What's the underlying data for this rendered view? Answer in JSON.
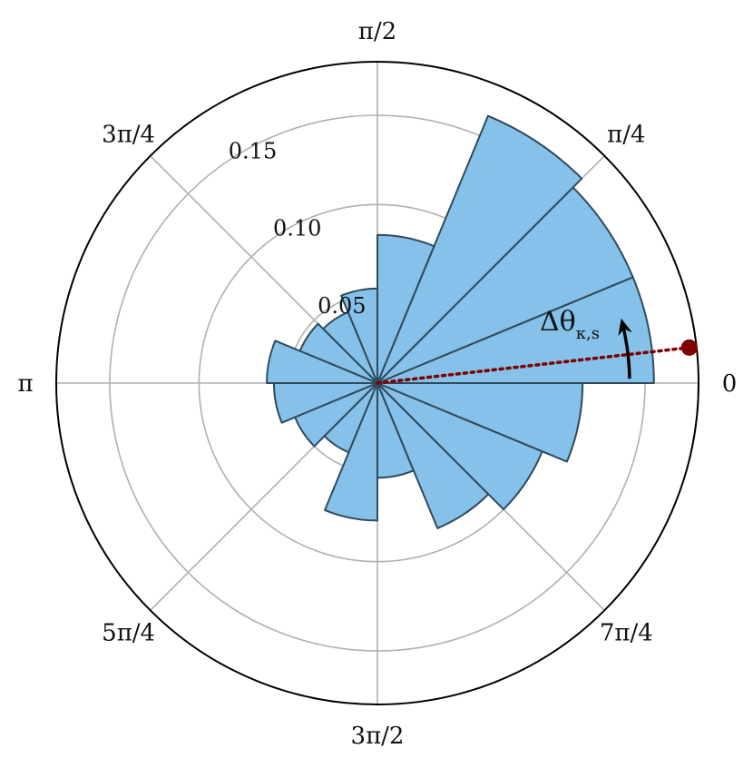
{
  "chart_data": {
    "type": "polar_bar",
    "bin_width_deg": 22.5,
    "bins": [
      {
        "start_deg": 0,
        "value": 0.155
      },
      {
        "start_deg": 22.5,
        "value": 0.155
      },
      {
        "start_deg": 45,
        "value": 0.162
      },
      {
        "start_deg": 67.5,
        "value": 0.083
      },
      {
        "start_deg": 90,
        "value": 0.053
      },
      {
        "start_deg": 112.5,
        "value": 0.043
      },
      {
        "start_deg": 135,
        "value": 0.047
      },
      {
        "start_deg": 157.5,
        "value": 0.062
      },
      {
        "start_deg": 180,
        "value": 0.058
      },
      {
        "start_deg": 202.5,
        "value": 0.05
      },
      {
        "start_deg": 225,
        "value": 0.042
      },
      {
        "start_deg": 247.5,
        "value": 0.077
      },
      {
        "start_deg": 270,
        "value": 0.053
      },
      {
        "start_deg": 292.5,
        "value": 0.088
      },
      {
        "start_deg": 315,
        "value": 0.1
      },
      {
        "start_deg": 337.5,
        "value": 0.115
      }
    ],
    "r_max": 0.18,
    "r_ticks": [
      0.05,
      0.1,
      0.15
    ],
    "r_tick_labels": [
      "0.05",
      "0.10",
      "0.15"
    ],
    "angle_ticks_deg": [
      0,
      45,
      90,
      135,
      180,
      225,
      270,
      315
    ],
    "angle_tick_labels": [
      "0",
      "π/4",
      "π/2",
      "3π/4",
      "π",
      "5π/4",
      "3π/2",
      "7π/4"
    ],
    "grid": true,
    "annotation": {
      "label_main": "Δθ",
      "label_sub": "κ,s",
      "marker_angle_deg": 6.5,
      "arc_from_deg": 1,
      "arc_to_deg": 14
    },
    "colors": {
      "bar_fill": "#85c1e9",
      "bar_edge": "#2e4a5c",
      "marker": "#7f0000",
      "grid": "#b0b0b0",
      "frame": "#000000"
    }
  }
}
